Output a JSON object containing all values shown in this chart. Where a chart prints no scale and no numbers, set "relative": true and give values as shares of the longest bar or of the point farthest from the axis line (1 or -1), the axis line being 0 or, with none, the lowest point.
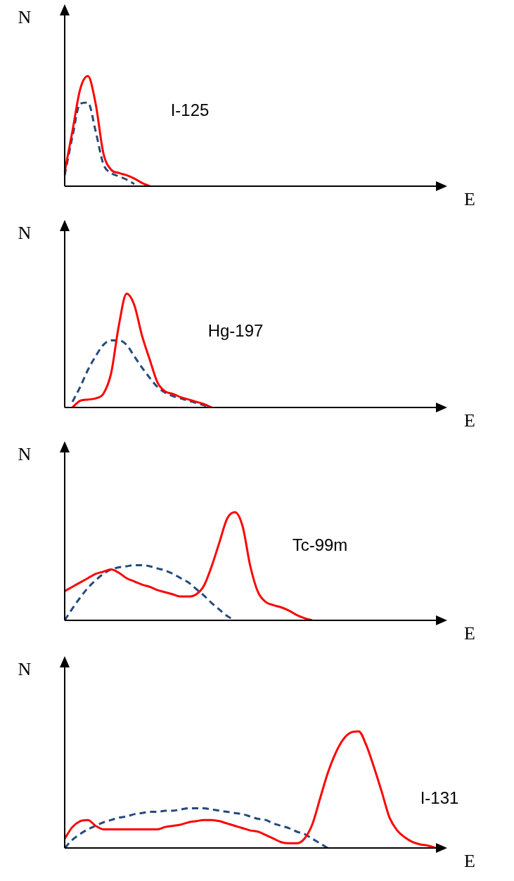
{
  "chart_data": [
    {
      "type": "line",
      "relative": true,
      "xlabel": "E",
      "ylabel": "N",
      "annotations": [
        "I-125"
      ],
      "marker": "none",
      "categories": [
        null,
        null,
        null,
        null,
        null,
        null,
        null,
        null,
        null,
        null,
        null,
        null,
        null,
        null,
        null,
        null,
        null,
        null,
        null,
        null,
        null,
        null,
        null,
        null,
        null,
        null,
        null,
        null,
        null,
        null,
        null,
        null,
        null,
        null,
        null,
        null,
        null,
        null,
        null,
        null,
        null,
        null,
        null,
        null,
        null,
        null,
        null,
        null,
        null
      ],
      "series": [
        {
          "color": "#ff0000",
          "line_style": "solid",
          "values": [
            0.13,
            0.5,
            0.88,
            1.0,
            0.75,
            0.3,
            0.15,
            0.12,
            0.1,
            0.07,
            0.03,
            0,
            null,
            null,
            null,
            null,
            null,
            null,
            null,
            null,
            null,
            null,
            null,
            null,
            null,
            null,
            null,
            null,
            null,
            null,
            null,
            null,
            null,
            null,
            null,
            null,
            null,
            null,
            null,
            null,
            null,
            null,
            null,
            null,
            null,
            null,
            null,
            null,
            null
          ]
        },
        {
          "color": "#244a7c",
          "line_style": "dashed",
          "values": [
            0.1,
            0.45,
            0.75,
            0.76,
            0.5,
            0.2,
            0.12,
            0.09,
            0.06,
            0.02,
            null,
            null,
            null,
            null,
            null,
            null,
            null,
            null,
            null,
            null,
            null,
            null,
            null,
            null,
            null,
            null,
            null,
            null,
            null,
            null,
            null,
            null,
            null,
            null,
            null,
            null,
            null,
            null,
            null,
            null,
            null,
            null,
            null,
            null,
            null,
            null,
            null,
            null,
            null
          ]
        }
      ]
    },
    {
      "type": "line",
      "relative": true,
      "xlabel": "E",
      "ylabel": "N",
      "annotations": [
        "Hg-197"
      ],
      "marker": "none",
      "categories": [
        null,
        null,
        null,
        null,
        null,
        null,
        null,
        null,
        null,
        null,
        null,
        null,
        null,
        null,
        null,
        null,
        null,
        null,
        null,
        null,
        null,
        null,
        null,
        null,
        null,
        null,
        null,
        null,
        null,
        null,
        null,
        null,
        null,
        null,
        null,
        null,
        null,
        null,
        null,
        null,
        null,
        null,
        null,
        null,
        null,
        null,
        null,
        null,
        null
      ],
      "series": [
        {
          "color": "#ff0000",
          "line_style": "solid",
          "values": [
            null,
            0,
            0.06,
            0.07,
            0.08,
            0.12,
            0.3,
            0.72,
            1.0,
            0.9,
            0.63,
            0.42,
            0.22,
            0.14,
            0.12,
            0.09,
            0.07,
            0.05,
            0.03,
            0,
            null,
            null,
            null,
            null,
            null,
            null,
            null,
            null,
            null,
            null,
            null,
            null,
            null,
            null,
            null,
            null,
            null,
            null,
            null,
            null,
            null,
            null,
            null,
            null,
            null,
            null,
            null,
            null,
            null
          ]
        },
        {
          "color": "#244a7c",
          "line_style": "dashed",
          "values": [
            null,
            0.05,
            0.18,
            0.33,
            0.45,
            0.55,
            0.59,
            0.59,
            0.55,
            0.45,
            0.35,
            0.26,
            0.18,
            0.13,
            0.1,
            0.08,
            0.06,
            0.04,
            0.02,
            0,
            null,
            null,
            null,
            null,
            null,
            null,
            null,
            null,
            null,
            null,
            null,
            null,
            null,
            null,
            null,
            null,
            null,
            null,
            null,
            null,
            null,
            null,
            null,
            null,
            null,
            null,
            null,
            null,
            null
          ]
        }
      ]
    },
    {
      "type": "line",
      "relative": true,
      "xlabel": "E",
      "ylabel": "N",
      "annotations": [
        "Tc-99m"
      ],
      "marker": "none",
      "categories": [
        null,
        null,
        null,
        null,
        null,
        null,
        null,
        null,
        null,
        null,
        null,
        null,
        null,
        null,
        null,
        null,
        null,
        null,
        null,
        null,
        null,
        null,
        null,
        null,
        null,
        null,
        null,
        null,
        null,
        null,
        null,
        null,
        null,
        null,
        null,
        null,
        null,
        null,
        null,
        null,
        null,
        null,
        null,
        null,
        null,
        null,
        null,
        null,
        null
      ],
      "series": [
        {
          "color": "#ff0000",
          "line_style": "solid",
          "values": [
            0.27,
            0.31,
            0.35,
            0.39,
            0.43,
            0.45,
            0.47,
            0.44,
            0.39,
            0.36,
            0.33,
            0.31,
            0.28,
            0.26,
            0.24,
            0.22,
            0.22,
            0.24,
            0.32,
            0.5,
            0.72,
            0.94,
            1.0,
            0.87,
            0.5,
            0.26,
            0.17,
            0.14,
            0.12,
            0.09,
            0.05,
            0.02,
            0,
            null,
            null,
            null,
            null,
            null,
            null,
            null,
            null,
            null,
            null,
            null,
            null,
            null,
            null,
            null,
            null
          ]
        },
        {
          "color": "#244a7c",
          "line_style": "dashed",
          "values": [
            0,
            0.11,
            0.21,
            0.3,
            0.37,
            0.43,
            0.47,
            0.49,
            0.5,
            0.51,
            0.51,
            0.5,
            0.48,
            0.46,
            0.43,
            0.39,
            0.35,
            0.29,
            0.23,
            0.16,
            0.1,
            0.04,
            0,
            null,
            null,
            null,
            null,
            null,
            null,
            null,
            null,
            null,
            null,
            null,
            null,
            null,
            null,
            null,
            null,
            null,
            null,
            null,
            null,
            null,
            null,
            null,
            null,
            null,
            null
          ]
        }
      ]
    },
    {
      "type": "line",
      "relative": true,
      "xlabel": "E",
      "ylabel": "N",
      "annotations": [
        "I-131"
      ],
      "marker": "none",
      "categories": [
        null,
        null,
        null,
        null,
        null,
        null,
        null,
        null,
        null,
        null,
        null,
        null,
        null,
        null,
        null,
        null,
        null,
        null,
        null,
        null,
        null,
        null,
        null,
        null,
        null,
        null,
        null,
        null,
        null,
        null,
        null,
        null,
        null,
        null,
        null,
        null,
        null,
        null,
        null,
        null,
        null,
        null,
        null,
        null,
        null,
        null,
        null,
        null,
        null
      ],
      "series": [
        {
          "color": "#ff0000",
          "line_style": "solid",
          "values": [
            0.08,
            0.18,
            0.23,
            0.24,
            0.19,
            0.16,
            0.16,
            0.16,
            0.16,
            0.16,
            0.16,
            0.16,
            0.16,
            0.18,
            0.19,
            0.2,
            0.22,
            0.23,
            0.24,
            0.24,
            0.23,
            0.21,
            0.19,
            0.17,
            0.15,
            0.14,
            0.11,
            0.08,
            0.05,
            0.04,
            0.04,
            0.08,
            0.2,
            0.42,
            0.64,
            0.81,
            0.93,
            0.99,
            1.0,
            0.88,
            0.69,
            0.48,
            0.26,
            0.15,
            0.09,
            0.05,
            0.03,
            0.02,
            0
          ]
        },
        {
          "color": "#244a7c",
          "line_style": "dashed",
          "values": [
            0,
            0.07,
            0.12,
            0.16,
            0.19,
            0.22,
            0.24,
            0.26,
            0.27,
            0.29,
            0.3,
            0.31,
            0.31,
            0.32,
            0.32,
            0.33,
            0.34,
            0.34,
            0.34,
            0.33,
            0.32,
            0.31,
            0.3,
            0.29,
            0.27,
            0.25,
            0.24,
            0.21,
            0.19,
            0.17,
            0.14,
            0.12,
            0.08,
            0.04,
            0,
            null,
            null,
            null,
            null,
            null,
            null,
            null,
            null,
            null,
            null,
            null,
            null,
            null,
            null
          ]
        }
      ]
    }
  ]
}
